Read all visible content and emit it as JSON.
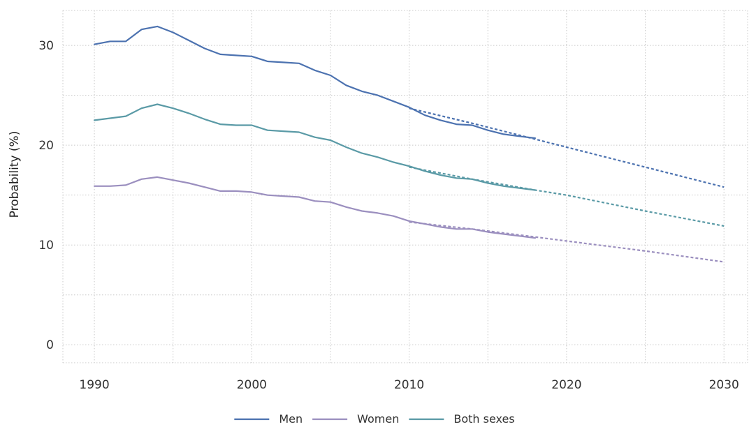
{
  "chart_data": {
    "type": "line",
    "title": "",
    "xlabel": "",
    "ylabel": "Probability (%)",
    "xlim": [
      1988,
      2031.5
    ],
    "ylim": [
      -1.8,
      33.5
    ],
    "x_ticks": [
      1990,
      2000,
      2010,
      2020,
      2030
    ],
    "x_minor_ticks": [
      1995,
      2005,
      2015,
      2025
    ],
    "y_ticks": [
      0,
      10,
      20,
      30
    ],
    "y_minor_ticks": [
      5,
      15,
      25
    ],
    "grid": true,
    "legend": {
      "position": "bottom-center"
    },
    "series": [
      {
        "name": "Men",
        "color": "#4c72b0",
        "style": "solid",
        "points": [
          [
            1990,
            30.1
          ],
          [
            1991,
            30.4
          ],
          [
            1992,
            30.4
          ],
          [
            1993,
            31.6
          ],
          [
            1994,
            31.9
          ],
          [
            1995,
            31.3
          ],
          [
            1996,
            30.5
          ],
          [
            1997,
            29.7
          ],
          [
            1998,
            29.1
          ],
          [
            1999,
            29.0
          ],
          [
            2000,
            28.9
          ],
          [
            2001,
            28.4
          ],
          [
            2002,
            28.3
          ],
          [
            2003,
            28.2
          ],
          [
            2004,
            27.5
          ],
          [
            2005,
            27.0
          ],
          [
            2006,
            26.0
          ],
          [
            2007,
            25.4
          ],
          [
            2008,
            25.0
          ],
          [
            2009,
            24.4
          ],
          [
            2010,
            23.8
          ],
          [
            2011,
            23.0
          ],
          [
            2012,
            22.5
          ],
          [
            2013,
            22.1
          ],
          [
            2014,
            22.0
          ],
          [
            2015,
            21.5
          ],
          [
            2016,
            21.1
          ],
          [
            2017,
            20.9
          ],
          [
            2018,
            20.7
          ]
        ]
      },
      {
        "name": "Men projection",
        "color": "#4c72b0",
        "style": "dashed",
        "points": [
          [
            2010,
            23.7
          ],
          [
            2014,
            22.2
          ],
          [
            2018,
            20.6
          ],
          [
            2020,
            19.8
          ],
          [
            2025,
            17.8
          ],
          [
            2030,
            15.8
          ]
        ]
      },
      {
        "name": "Women",
        "color": "#9b8fbf",
        "style": "solid",
        "points": [
          [
            1990,
            15.9
          ],
          [
            1991,
            15.9
          ],
          [
            1992,
            16.0
          ],
          [
            1993,
            16.6
          ],
          [
            1994,
            16.8
          ],
          [
            1995,
            16.5
          ],
          [
            1996,
            16.2
          ],
          [
            1997,
            15.8
          ],
          [
            1998,
            15.4
          ],
          [
            1999,
            15.4
          ],
          [
            2000,
            15.3
          ],
          [
            2001,
            15.0
          ],
          [
            2002,
            14.9
          ],
          [
            2003,
            14.8
          ],
          [
            2004,
            14.4
          ],
          [
            2005,
            14.3
          ],
          [
            2006,
            13.8
          ],
          [
            2007,
            13.4
          ],
          [
            2008,
            13.2
          ],
          [
            2009,
            12.9
          ],
          [
            2010,
            12.4
          ],
          [
            2011,
            12.1
          ],
          [
            2012,
            11.8
          ],
          [
            2013,
            11.6
          ],
          [
            2014,
            11.6
          ],
          [
            2015,
            11.3
          ],
          [
            2016,
            11.1
          ],
          [
            2017,
            10.9
          ],
          [
            2018,
            10.7
          ]
        ]
      },
      {
        "name": "Women projection",
        "color": "#9b8fbf",
        "style": "dashed",
        "points": [
          [
            2010,
            12.3
          ],
          [
            2014,
            11.6
          ],
          [
            2018,
            10.8
          ],
          [
            2020,
            10.4
          ],
          [
            2025,
            9.4
          ],
          [
            2030,
            8.3
          ]
        ]
      },
      {
        "name": "Both sexes",
        "color": "#5a9aa6",
        "style": "solid",
        "points": [
          [
            1990,
            22.5
          ],
          [
            1991,
            22.7
          ],
          [
            1992,
            22.9
          ],
          [
            1993,
            23.7
          ],
          [
            1994,
            24.1
          ],
          [
            1995,
            23.7
          ],
          [
            1996,
            23.2
          ],
          [
            1997,
            22.6
          ],
          [
            1998,
            22.1
          ],
          [
            1999,
            22.0
          ],
          [
            2000,
            22.0
          ],
          [
            2001,
            21.5
          ],
          [
            2002,
            21.4
          ],
          [
            2003,
            21.3
          ],
          [
            2004,
            20.8
          ],
          [
            2005,
            20.5
          ],
          [
            2006,
            19.8
          ],
          [
            2007,
            19.2
          ],
          [
            2008,
            18.8
          ],
          [
            2009,
            18.3
          ],
          [
            2010,
            17.9
          ],
          [
            2011,
            17.4
          ],
          [
            2012,
            17.0
          ],
          [
            2013,
            16.7
          ],
          [
            2014,
            16.6
          ],
          [
            2015,
            16.2
          ],
          [
            2016,
            15.9
          ],
          [
            2017,
            15.7
          ],
          [
            2018,
            15.5
          ]
        ]
      },
      {
        "name": "Both sexes projection",
        "color": "#5a9aa6",
        "style": "dashed",
        "points": [
          [
            2010,
            17.8
          ],
          [
            2014,
            16.6
          ],
          [
            2018,
            15.5
          ],
          [
            2020,
            15.0
          ],
          [
            2025,
            13.4
          ],
          [
            2030,
            11.9
          ]
        ]
      }
    ],
    "legend_entries": [
      {
        "label": "Men",
        "color": "#4c72b0"
      },
      {
        "label": "Women",
        "color": "#9b8fbf"
      },
      {
        "label": "Both sexes",
        "color": "#5a9aa6"
      }
    ]
  }
}
